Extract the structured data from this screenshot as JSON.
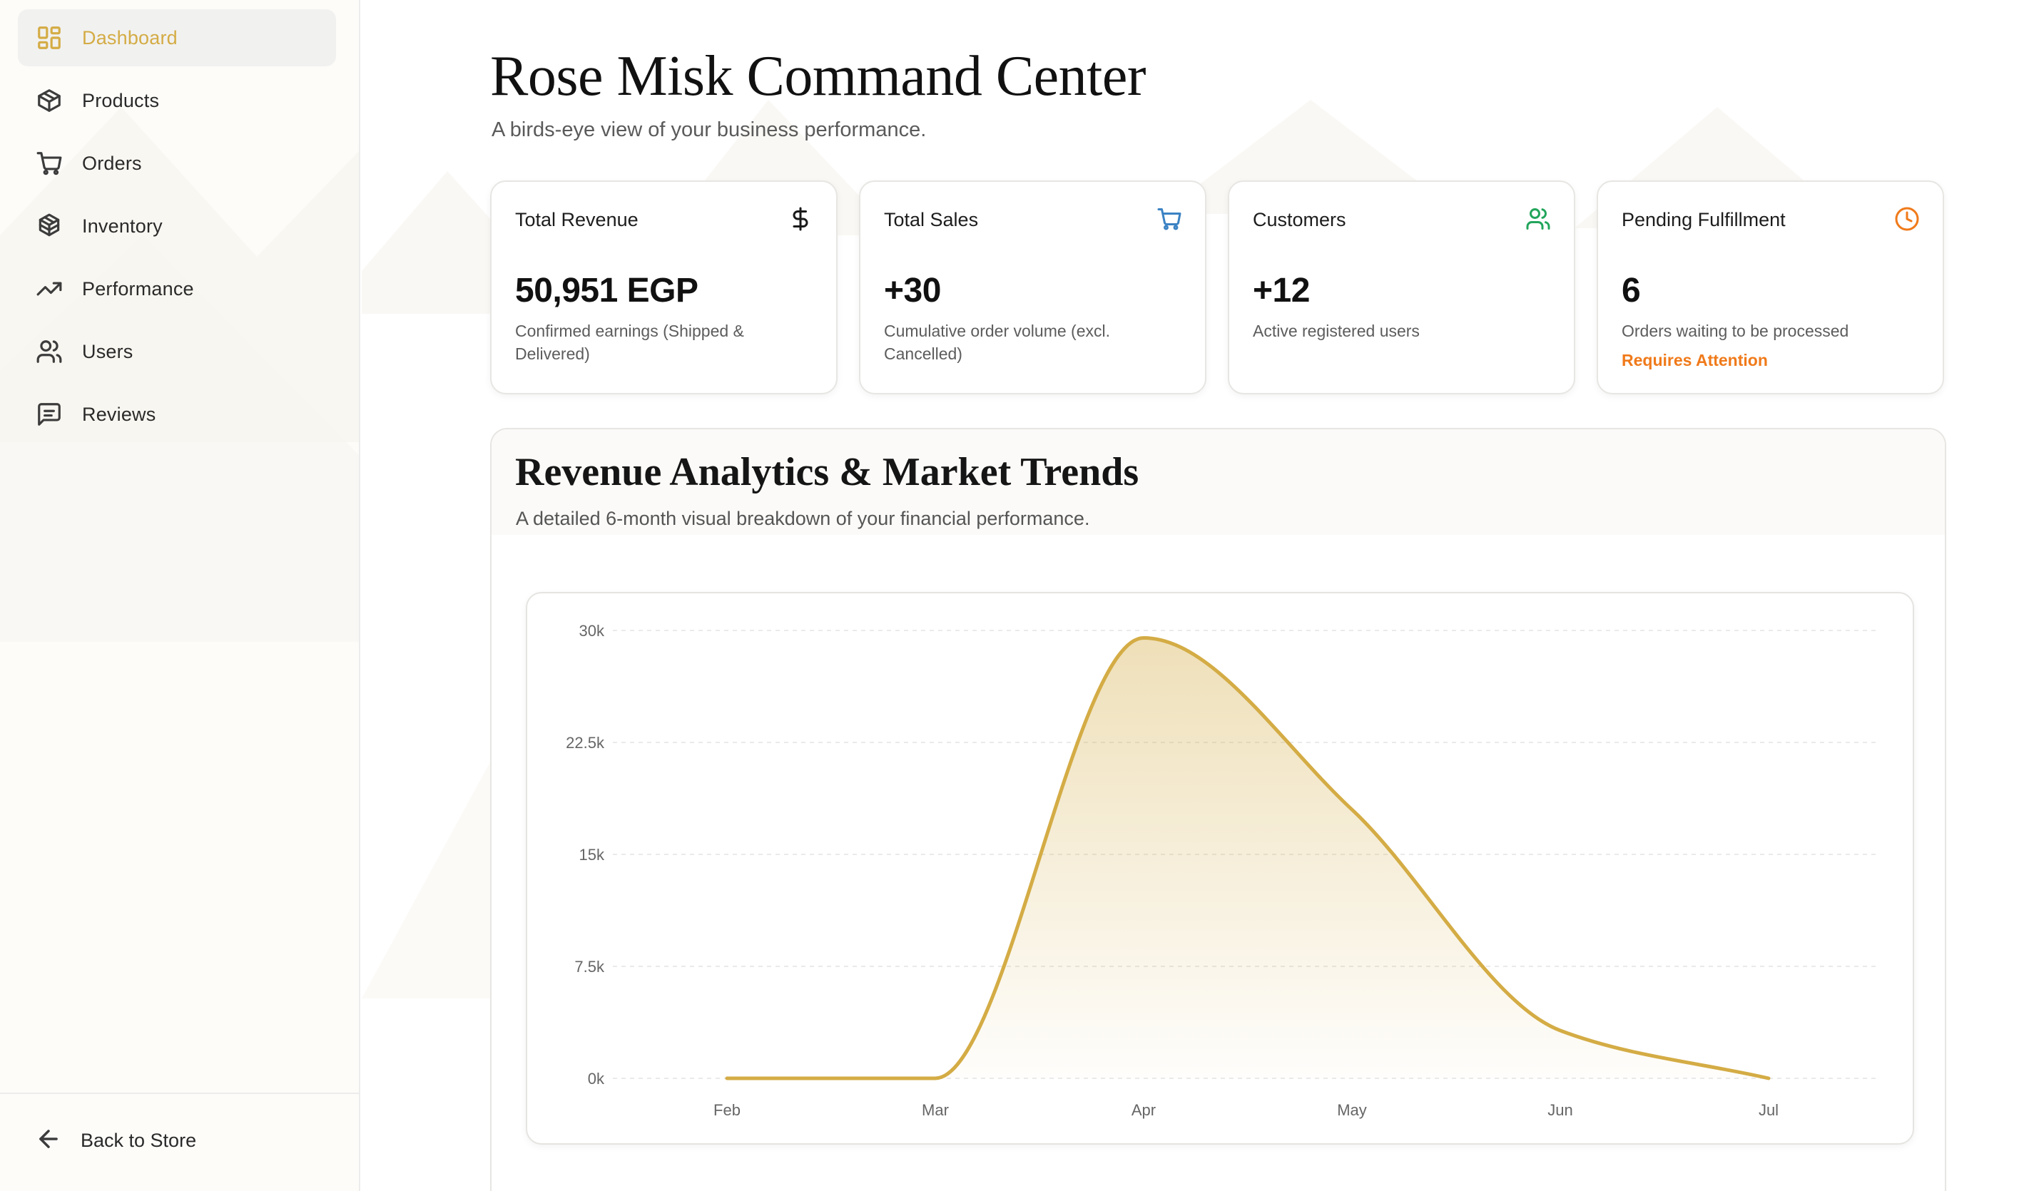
{
  "sidebar": {
    "items": [
      {
        "label": "Dashboard",
        "icon": "dashboard-grid-icon",
        "active": true
      },
      {
        "label": "Products",
        "icon": "box-icon",
        "active": false
      },
      {
        "label": "Orders",
        "icon": "cart-icon",
        "active": false
      },
      {
        "label": "Inventory",
        "icon": "boxes-icon",
        "active": false
      },
      {
        "label": "Performance",
        "icon": "trending-up-icon",
        "active": false
      },
      {
        "label": "Users",
        "icon": "users-icon",
        "active": false
      },
      {
        "label": "Reviews",
        "icon": "message-square-icon",
        "active": false
      }
    ],
    "footer": {
      "label": "Back to Store",
      "icon": "arrow-left-icon"
    }
  },
  "header": {
    "title": "Rose Misk Command Center",
    "subtitle": "A birds-eye view of your business performance."
  },
  "cards": [
    {
      "title": "Total Revenue",
      "icon": "dollar-icon",
      "icon_color": "#1a1a1a",
      "value": "50,951 EGP",
      "desc": "Confirmed earnings (Shipped & Delivered)",
      "alert": ""
    },
    {
      "title": "Total Sales",
      "icon": "cart-icon",
      "icon_color": "#3b82c4",
      "value": "+30",
      "desc": "Cumulative order volume (excl. Cancelled)",
      "alert": ""
    },
    {
      "title": "Customers",
      "icon": "users-icon",
      "icon_color": "#22a55b",
      "value": "+12",
      "desc": "Active registered users",
      "alert": ""
    },
    {
      "title": "Pending Fulfillment",
      "icon": "clock-icon",
      "icon_color": "#f07a1a",
      "value": "6",
      "desc": "Orders waiting to be processed",
      "alert": "Requires Attention"
    }
  ],
  "analytics": {
    "title": "Revenue Analytics & Market Trends",
    "subtitle": "A detailed 6-month visual breakdown of your financial performance."
  },
  "colors": {
    "accent": "#d4ac45"
  },
  "chart_data": {
    "type": "area",
    "x": [
      "Feb",
      "Mar",
      "Apr",
      "May",
      "Jun",
      "Jul"
    ],
    "series": [
      {
        "values": [
          0,
          0,
          29500,
          18000,
          3200,
          0
        ]
      }
    ],
    "y_ticks": [
      "0k",
      "7.5k",
      "15k",
      "22.5k",
      "30k"
    ],
    "ylim": [
      0,
      30000
    ],
    "grid": true,
    "smooth": true
  }
}
